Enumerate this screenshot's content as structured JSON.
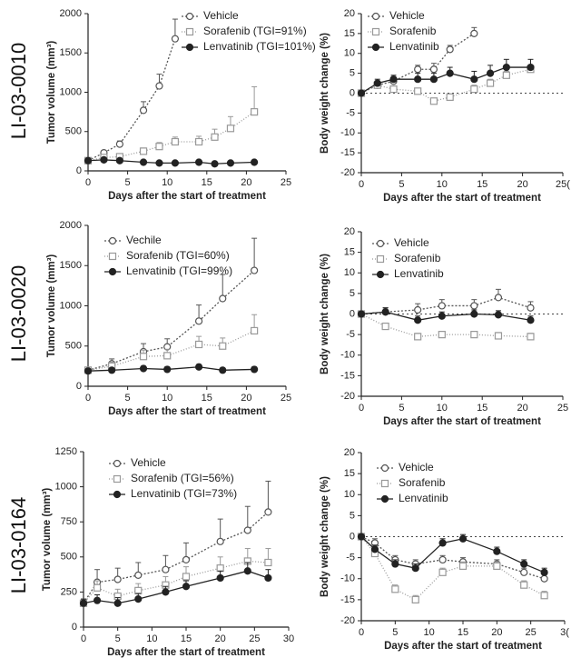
{
  "chart_data": [
    {
      "type": "line",
      "title": "LI-03-0010",
      "xlabel": "Days after the start of treatment",
      "ylabel": "Tumor volume (mm³)",
      "x": [
        0,
        2,
        4,
        7,
        9,
        11,
        14,
        16,
        18,
        21
      ],
      "xlim": [
        0,
        25
      ],
      "xticks": [
        0,
        5,
        10,
        15,
        20,
        25
      ],
      "ylim": [
        0,
        2000
      ],
      "yticks": [
        0,
        500,
        1000,
        1500,
        2000
      ],
      "legend": "upper left",
      "series": [
        {
          "name": "Vehicle",
          "color": "#555555",
          "marker": "open-circle",
          "dash": "2,2",
          "values": [
            130,
            230,
            340,
            770,
            1080,
            1680,
            null,
            null,
            null,
            null
          ],
          "errors": [
            20,
            30,
            40,
            110,
            150,
            250,
            null,
            null,
            null,
            null
          ]
        },
        {
          "name": "Sorafenib (TGI=91%)",
          "color": "#999999",
          "marker": "open-square",
          "dash": "1,2",
          "values": [
            130,
            170,
            180,
            250,
            310,
            370,
            370,
            430,
            540,
            750
          ],
          "errors": [
            20,
            20,
            30,
            40,
            50,
            60,
            70,
            100,
            150,
            320
          ]
        },
        {
          "name": "Lenvatinib (TGI=101%)",
          "color": "#222222",
          "marker": "filled-circle",
          "dash": "none",
          "values": [
            130,
            140,
            130,
            110,
            100,
            100,
            110,
            90,
            100,
            110
          ],
          "errors": [
            15,
            15,
            15,
            15,
            15,
            15,
            20,
            15,
            15,
            20
          ]
        }
      ]
    },
    {
      "type": "line",
      "xlabel": "Days after the start of treatment",
      "ylabel": "Body weight change (%)",
      "x": [
        0,
        2,
        4,
        7,
        9,
        11,
        14,
        16,
        18,
        21
      ],
      "xlim": [
        0,
        25
      ],
      "xticks": [
        0,
        5,
        10,
        15,
        20,
        {
          "value": 25,
          "label": "25("
        }
      ],
      "ylim": [
        -20,
        20
      ],
      "yticks": [
        -20,
        -15,
        -10,
        -5,
        0,
        5,
        10,
        15,
        20
      ],
      "legend": "upper left",
      "zero_line": true,
      "series": [
        {
          "name": "Vehicle",
          "color": "#555555",
          "marker": "open-circle",
          "dash": "2,2",
          "values": [
            0,
            2,
            3,
            6,
            6,
            11,
            15,
            null,
            null,
            null
          ],
          "errors": [
            0.5,
            1,
            1,
            1,
            1.5,
            1,
            1.5,
            null,
            null,
            null
          ]
        },
        {
          "name": "Sorafenib",
          "color": "#999999",
          "marker": "open-square",
          "dash": "1,2",
          "values": [
            0,
            2,
            1,
            0.5,
            -2,
            -1,
            1,
            2.5,
            4.5,
            6
          ],
          "errors": [
            0.5,
            0.5,
            0.5,
            0.5,
            0.5,
            0.8,
            1,
            1,
            1,
            1
          ]
        },
        {
          "name": "Lenvatinib",
          "color": "#222222",
          "marker": "filled-circle",
          "dash": "none",
          "values": [
            0,
            2.5,
            3.5,
            3.5,
            3.5,
            5,
            3.5,
            5,
            6.5,
            6.5
          ],
          "errors": [
            0.5,
            1,
            1,
            1.5,
            1.5,
            1.5,
            2,
            2,
            2,
            2
          ]
        }
      ]
    },
    {
      "type": "line",
      "title": "LI-03-0020",
      "xlabel": "Days after the start of treatment",
      "ylabel": "Tumor volume (mm³)",
      "x": [
        0,
        3,
        7,
        10,
        14,
        17,
        21
      ],
      "xlim": [
        0,
        25
      ],
      "xticks": [
        0,
        5,
        10,
        15,
        20,
        25
      ],
      "ylim": [
        0,
        2000
      ],
      "yticks": [
        0,
        500,
        1000,
        1500,
        2000
      ],
      "legend": "upper left",
      "series": [
        {
          "name": "Vechile",
          "color": "#555555",
          "marker": "open-circle",
          "dash": "2,2",
          "values": [
            200,
            280,
            430,
            490,
            810,
            1090,
            1440
          ],
          "errors": [
            30,
            60,
            100,
            100,
            200,
            300,
            400
          ]
        },
        {
          "name": "Sorafenib (TGI=60%)",
          "color": "#999999",
          "marker": "open-square",
          "dash": "1,2",
          "values": [
            200,
            250,
            370,
            380,
            520,
            500,
            690
          ],
          "errors": [
            20,
            50,
            80,
            80,
            100,
            100,
            200
          ]
        },
        {
          "name": "Lenvatinib (TGI=99%)",
          "color": "#222222",
          "marker": "filled-circle",
          "dash": "none",
          "values": [
            190,
            200,
            220,
            210,
            240,
            200,
            210
          ],
          "errors": [
            20,
            20,
            30,
            30,
            30,
            20,
            30
          ]
        }
      ]
    },
    {
      "type": "line",
      "xlabel": "Days after the start of treatment",
      "ylabel": "Body weight change (%)",
      "x": [
        0,
        3,
        7,
        10,
        14,
        17,
        21
      ],
      "xlim": [
        0,
        25
      ],
      "xticks": [
        0,
        5,
        10,
        15,
        20,
        25
      ],
      "ylim": [
        -20,
        20
      ],
      "yticks": [
        -20,
        -15,
        -10,
        -5,
        0,
        5,
        10,
        15,
        20
      ],
      "legend": "upper left",
      "zero_line": true,
      "series": [
        {
          "name": "Vehicle",
          "color": "#555555",
          "marker": "open-circle",
          "dash": "2,2",
          "values": [
            0,
            0.5,
            1,
            2,
            2,
            4,
            1.5
          ],
          "errors": [
            0.5,
            1,
            1.5,
            1.5,
            1.5,
            2,
            1.5
          ]
        },
        {
          "name": "Sorafenib",
          "color": "#999999",
          "marker": "open-square",
          "dash": "1,2",
          "values": [
            0,
            -3,
            -5.5,
            -5,
            -5,
            -5.3,
            -5.5
          ],
          "errors": [
            0.5,
            0.8,
            0.8,
            0.8,
            0.8,
            0.8,
            0.8
          ]
        },
        {
          "name": "Lenvatinib",
          "color": "#222222",
          "marker": "filled-circle",
          "dash": "none",
          "values": [
            0,
            0.5,
            -1.5,
            -0.5,
            0,
            -0.2,
            -1.5
          ],
          "errors": [
            0.5,
            1,
            1,
            1,
            1,
            1,
            1
          ]
        }
      ]
    },
    {
      "type": "line",
      "title": "LI-03-0164",
      "xlabel": "Days after the start of treatment",
      "ylabel": "Tumor volume (mm³)",
      "x": [
        0,
        2,
        5,
        8,
        12,
        15,
        20,
        24,
        27
      ],
      "xlim": [
        0,
        30
      ],
      "xticks": [
        0,
        5,
        10,
        15,
        20,
        25,
        30
      ],
      "ylim": [
        0,
        1250
      ],
      "yticks": [
        0,
        250,
        500,
        750,
        1000,
        1250
      ],
      "legend": "upper left",
      "series": [
        {
          "name": "Vehicle",
          "color": "#555555",
          "marker": "open-circle",
          "dash": "2,2",
          "values": [
            170,
            320,
            340,
            370,
            410,
            480,
            610,
            690,
            820
          ],
          "errors": [
            30,
            90,
            80,
            90,
            100,
            120,
            160,
            170,
            220
          ]
        },
        {
          "name": "Sorafenib (TGI=56%)",
          "color": "#999999",
          "marker": "open-square",
          "dash": "1,2",
          "values": [
            170,
            280,
            220,
            260,
            300,
            360,
            420,
            470,
            460
          ],
          "errors": [
            30,
            50,
            50,
            50,
            60,
            70,
            80,
            90,
            100
          ]
        },
        {
          "name": "Lenvatinib (TGI=73%)",
          "color": "#222222",
          "marker": "filled-circle",
          "dash": "none",
          "values": [
            170,
            190,
            170,
            200,
            250,
            290,
            350,
            400,
            350
          ],
          "errors": [
            30,
            40,
            40,
            40,
            40,
            40,
            50,
            60,
            60
          ]
        }
      ]
    },
    {
      "type": "line",
      "xlabel": "Days after the start of treatment",
      "ylabel": "Body weight change (%)",
      "x": [
        0,
        2,
        5,
        8,
        12,
        15,
        20,
        24,
        27
      ],
      "xlim": [
        0,
        30
      ],
      "xticks": [
        0,
        5,
        10,
        15,
        20,
        25,
        {
          "value": 30,
          "label": "3("
        }
      ],
      "ylim": [
        -20,
        20
      ],
      "yticks": [
        -20,
        -15,
        -10,
        -5,
        0,
        5,
        10,
        15,
        20
      ],
      "legend": "upper left",
      "zero_line": true,
      "series": [
        {
          "name": "Vehicle",
          "color": "#555555",
          "marker": "open-circle",
          "dash": "2,2",
          "values": [
            0,
            -1.5,
            -5.5,
            -6.5,
            -5.5,
            -6,
            -6.5,
            -8.5,
            -10
          ],
          "errors": [
            0.5,
            1,
            1,
            1,
            1,
            1,
            1,
            1,
            1
          ]
        },
        {
          "name": "Sorafenib",
          "color": "#999999",
          "marker": "open-square",
          "dash": "1,2",
          "values": [
            0,
            -4,
            -12.5,
            -15,
            -8.5,
            -7,
            -7,
            -11.5,
            -14
          ],
          "errors": [
            0.5,
            1,
            1,
            1,
            1,
            1,
            1,
            1,
            1
          ]
        },
        {
          "name": "Lenvatinib",
          "color": "#222222",
          "marker": "filled-circle",
          "dash": "none",
          "values": [
            0,
            -3,
            -6.5,
            -7.5,
            -1.5,
            -0.5,
            -3.5,
            -6.5,
            -8.5
          ],
          "errors": [
            0.5,
            1,
            1,
            1,
            1,
            1,
            1,
            1,
            1
          ]
        }
      ]
    }
  ]
}
